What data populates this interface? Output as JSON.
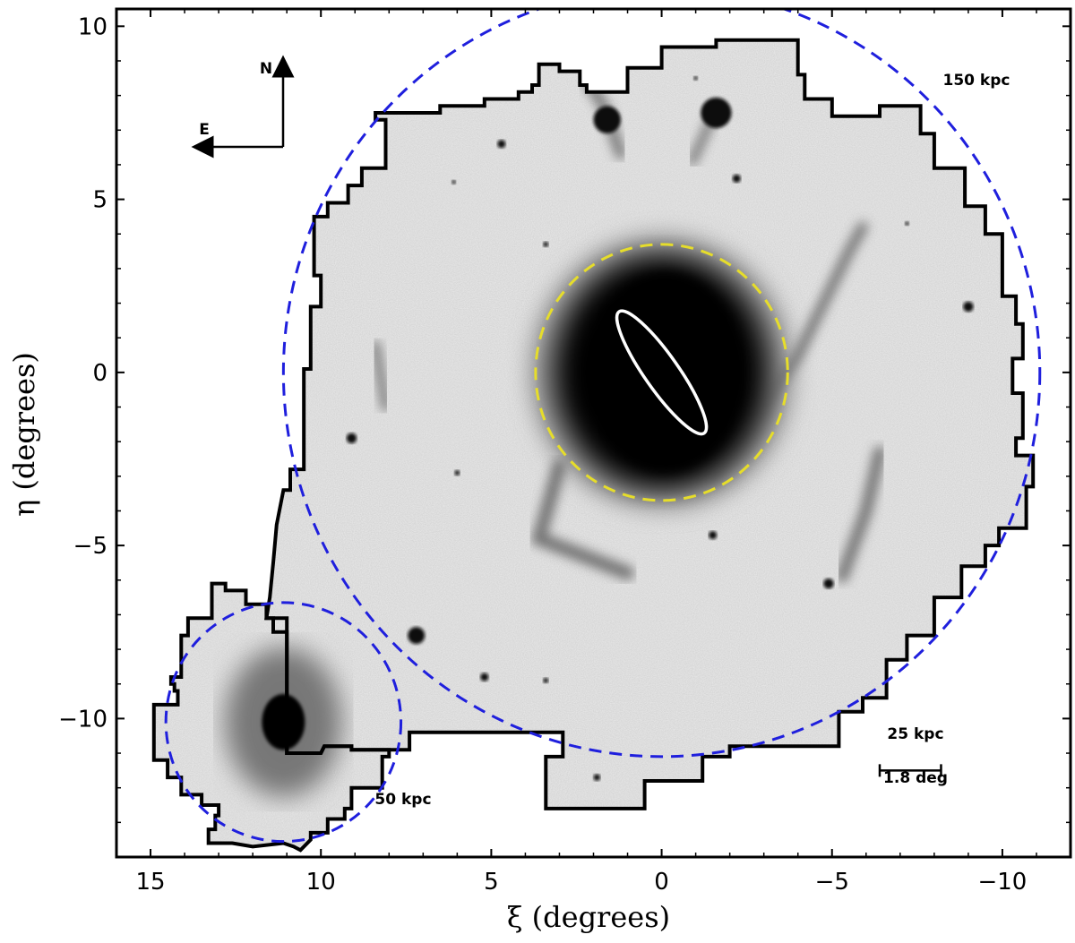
{
  "chart_data": {
    "type": "image-map",
    "xlabel": "ξ (degrees)",
    "ylabel": "η (degrees)",
    "xlim": [
      16,
      -12
    ],
    "ylim": [
      -14,
      10.5
    ],
    "x_ticks": [
      15,
      10,
      5,
      0,
      -5,
      -10
    ],
    "x_tick_labels": [
      "15",
      "10",
      "5",
      "0",
      "−5",
      "−10"
    ],
    "y_ticks": [
      10,
      5,
      0,
      -5,
      -10
    ],
    "y_tick_labels": [
      "10",
      "5",
      "0",
      "−5",
      "−10"
    ],
    "compass": {
      "north": "N",
      "east": "E"
    },
    "circles": [
      {
        "label": "150 kpc",
        "center": [
          0,
          0
        ],
        "radius_deg": 11.1,
        "color": "#1f1fdd",
        "style": "dashed"
      },
      {
        "label": "50 kpc",
        "center": [
          11.1,
          -10.1
        ],
        "radius_deg": 3.45,
        "color": "#1f1fdd",
        "style": "dashed"
      },
      {
        "label": "",
        "center": [
          0,
          0
        ],
        "radius_deg": 3.7,
        "color": "#e6dd2a",
        "style": "dashed"
      }
    ],
    "disk_ellipse": {
      "center": [
        0,
        0
      ],
      "semi_major_deg": 2.1,
      "semi_minor_deg": 0.5,
      "color": "#ffffff"
    },
    "scale_bar": {
      "physical": "25 kpc",
      "angular": "1.8 deg",
      "length_deg": 1.8,
      "x_start": -6.4,
      "y": -11.5
    },
    "survey_footprint_color": "#000000",
    "sources": [
      {
        "x": 0,
        "y": 0,
        "r": 3.6,
        "kind": "main-halo"
      },
      {
        "x": 11.1,
        "y": -10.1,
        "r": 0.9,
        "kind": "satellite-core"
      },
      {
        "x": 1.6,
        "y": 7.3,
        "r": 0.4,
        "kind": "blob"
      },
      {
        "x": -1.6,
        "y": 7.5,
        "r": 0.45,
        "kind": "blob"
      },
      {
        "x": 7.2,
        "y": -7.6,
        "r": 0.25,
        "kind": "blob"
      },
      {
        "x": 9.1,
        "y": -1.9,
        "r": 0.15,
        "kind": "blob"
      },
      {
        "x": -9.0,
        "y": 1.9,
        "r": 0.15,
        "kind": "blob"
      },
      {
        "x": -4.9,
        "y": -6.1,
        "r": 0.15,
        "kind": "blob"
      },
      {
        "x": -1.5,
        "y": -4.7,
        "r": 0.12,
        "kind": "blob"
      },
      {
        "x": 4.7,
        "y": 6.6,
        "r": 0.12,
        "kind": "blob"
      },
      {
        "x": -2.2,
        "y": 5.6,
        "r": 0.12,
        "kind": "blob"
      },
      {
        "x": 5.2,
        "y": -8.8,
        "r": 0.12,
        "kind": "blob"
      },
      {
        "x": 1.9,
        "y": -11.7,
        "r": 0.1,
        "kind": "blob"
      },
      {
        "x": 3.4,
        "y": 3.7,
        "r": 0.08,
        "kind": "blob"
      },
      {
        "x": 6.1,
        "y": 5.5,
        "r": 0.06,
        "kind": "blob"
      },
      {
        "x": 6.0,
        "y": -2.9,
        "r": 0.08,
        "kind": "blob"
      },
      {
        "x": 3.4,
        "y": -8.9,
        "r": 0.08,
        "kind": "blob"
      },
      {
        "x": -7.2,
        "y": 4.3,
        "r": 0.06,
        "kind": "blob"
      },
      {
        "x": -1.0,
        "y": 8.5,
        "r": 0.06,
        "kind": "blob"
      }
    ],
    "streams": [
      {
        "points": [
          [
            -1.5,
            -3.0
          ],
          [
            -4.0,
            0.5
          ],
          [
            -5.5,
            3.5
          ],
          [
            -5.9,
            4.2
          ]
        ],
        "width": 0.3
      },
      {
        "points": [
          [
            -5.3,
            -5.9
          ],
          [
            -6.0,
            -4.0
          ],
          [
            -6.4,
            -2.3
          ]
        ],
        "width": 0.35
      },
      {
        "points": [
          [
            8.4,
            0.8
          ],
          [
            8.1,
            -1.0
          ]
        ],
        "width": 0.25
      },
      {
        "points": [
          [
            1.2,
            6.3
          ],
          [
            1.7,
            7.7
          ],
          [
            2.3,
            8.6
          ]
        ],
        "width": 0.3
      },
      {
        "points": [
          [
            -0.9,
            6.1
          ],
          [
            -1.6,
            7.6
          ]
        ],
        "width": 0.25
      },
      {
        "points": [
          [
            3.0,
            -2.7
          ],
          [
            3.6,
            -4.8
          ],
          [
            1.0,
            -5.8
          ]
        ],
        "width": 0.4
      }
    ],
    "footprint_main": [
      [
        11.0,
        -11.0
      ],
      [
        10.0,
        -11.0
      ],
      [
        9.9,
        -10.8
      ],
      [
        9.1,
        -10.8
      ],
      [
        9.1,
        -10.9
      ],
      [
        7.4,
        -10.9
      ],
      [
        7.4,
        -10.4
      ],
      [
        2.9,
        -10.4
      ],
      [
        2.9,
        -11.1
      ],
      [
        3.4,
        -11.1
      ],
      [
        3.4,
        -12.6
      ],
      [
        0.5,
        -12.6
      ],
      [
        0.5,
        -11.8
      ],
      [
        -1.2,
        -11.8
      ],
      [
        -1.2,
        -11.1
      ],
      [
        -2.0,
        -11.1
      ],
      [
        -2.0,
        -10.8
      ],
      [
        -5.2,
        -10.8
      ],
      [
        -5.2,
        -9.8
      ],
      [
        -5.9,
        -9.8
      ],
      [
        -5.9,
        -9.4
      ],
      [
        -6.6,
        -9.4
      ],
      [
        -6.6,
        -8.3
      ],
      [
        -7.2,
        -8.3
      ],
      [
        -7.2,
        -7.6
      ],
      [
        -8.0,
        -7.6
      ],
      [
        -8.0,
        -6.5
      ],
      [
        -8.8,
        -6.5
      ],
      [
        -8.8,
        -5.6
      ],
      [
        -9.5,
        -5.6
      ],
      [
        -9.5,
        -5.0
      ],
      [
        -9.9,
        -5.0
      ],
      [
        -9.9,
        -4.5
      ],
      [
        -10.7,
        -4.5
      ],
      [
        -10.7,
        -3.3
      ],
      [
        -10.9,
        -3.3
      ],
      [
        -10.9,
        -2.4
      ],
      [
        -10.4,
        -2.4
      ],
      [
        -10.4,
        -1.9
      ],
      [
        -10.6,
        -1.9
      ],
      [
        -10.6,
        -0.6
      ],
      [
        -10.3,
        -0.6
      ],
      [
        -10.3,
        0.4
      ],
      [
        -10.6,
        0.4
      ],
      [
        -10.6,
        1.4
      ],
      [
        -10.4,
        1.4
      ],
      [
        -10.4,
        2.2
      ],
      [
        -10.0,
        2.2
      ],
      [
        -10.0,
        4.0
      ],
      [
        -9.5,
        4.0
      ],
      [
        -9.5,
        4.8
      ],
      [
        -8.9,
        4.8
      ],
      [
        -8.9,
        5.9
      ],
      [
        -8.0,
        5.9
      ],
      [
        -8.0,
        6.9
      ],
      [
        -7.6,
        6.9
      ],
      [
        -7.6,
        7.7
      ],
      [
        -6.4,
        7.7
      ],
      [
        -6.4,
        7.4
      ],
      [
        -5.0,
        7.4
      ],
      [
        -5.0,
        7.9
      ],
      [
        -4.2,
        7.9
      ],
      [
        -4.2,
        8.6
      ],
      [
        -4.0,
        8.6
      ],
      [
        -4.0,
        9.6
      ],
      [
        -1.6,
        9.6
      ],
      [
        -1.6,
        9.4
      ],
      [
        0.0,
        9.4
      ],
      [
        0.0,
        8.8
      ],
      [
        1.0,
        8.8
      ],
      [
        1.0,
        8.1
      ],
      [
        2.2,
        8.1
      ],
      [
        2.2,
        8.3
      ],
      [
        2.4,
        8.3
      ],
      [
        2.4,
        8.7
      ],
      [
        3.0,
        8.7
      ],
      [
        3.0,
        8.9
      ],
      [
        3.6,
        8.9
      ],
      [
        3.6,
        8.3
      ],
      [
        3.8,
        8.3
      ],
      [
        3.8,
        8.1
      ],
      [
        4.2,
        8.1
      ],
      [
        4.2,
        7.9
      ],
      [
        5.2,
        7.9
      ],
      [
        5.2,
        7.7
      ],
      [
        6.5,
        7.7
      ],
      [
        6.5,
        7.5
      ],
      [
        8.4,
        7.5
      ],
      [
        8.4,
        7.3
      ],
      [
        8.1,
        7.3
      ],
      [
        8.1,
        5.9
      ],
      [
        8.8,
        5.9
      ],
      [
        8.8,
        5.4
      ],
      [
        9.2,
        5.4
      ],
      [
        9.2,
        4.9
      ],
      [
        9.8,
        4.9
      ],
      [
        9.8,
        4.5
      ],
      [
        10.2,
        4.5
      ],
      [
        10.2,
        2.8
      ],
      [
        10.0,
        2.8
      ],
      [
        10.0,
        1.9
      ],
      [
        10.3,
        1.9
      ],
      [
        10.3,
        0.1
      ],
      [
        10.5,
        0.1
      ],
      [
        10.5,
        -2.8
      ],
      [
        10.9,
        -2.8
      ],
      [
        10.9,
        -3.4
      ],
      [
        11.1,
        -3.4
      ],
      [
        11.3,
        -4.4
      ],
      [
        11.4,
        -5.5
      ],
      [
        11.5,
        -6.5
      ],
      [
        11.6,
        -7.1
      ],
      [
        11.4,
        -7.1
      ],
      [
        11.4,
        -7.5
      ],
      [
        11.0,
        -7.5
      ],
      [
        11.0,
        -11.0
      ]
    ],
    "footprint_sat": [
      [
        11.0,
        -7.1
      ],
      [
        11.6,
        -7.1
      ],
      [
        11.6,
        -6.7
      ],
      [
        12.2,
        -6.7
      ],
      [
        12.2,
        -6.3
      ],
      [
        12.8,
        -6.3
      ],
      [
        12.8,
        -6.1
      ],
      [
        13.2,
        -6.1
      ],
      [
        13.2,
        -7.1
      ],
      [
        13.9,
        -7.1
      ],
      [
        13.9,
        -7.6
      ],
      [
        14.1,
        -7.6
      ],
      [
        14.1,
        -8.8
      ],
      [
        14.4,
        -8.8
      ],
      [
        14.4,
        -9.0
      ],
      [
        14.3,
        -9.0
      ],
      [
        14.3,
        -9.2
      ],
      [
        14.2,
        -9.2
      ],
      [
        14.2,
        -9.6
      ],
      [
        14.9,
        -9.6
      ],
      [
        14.9,
        -11.2
      ],
      [
        14.5,
        -11.2
      ],
      [
        14.5,
        -11.7
      ],
      [
        14.1,
        -11.7
      ],
      [
        14.1,
        -12.2
      ],
      [
        13.5,
        -12.2
      ],
      [
        13.5,
        -12.5
      ],
      [
        13.0,
        -12.5
      ],
      [
        13.0,
        -12.8
      ],
      [
        13.1,
        -12.8
      ],
      [
        13.1,
        -13.2
      ],
      [
        13.3,
        -13.2
      ],
      [
        13.3,
        -13.6
      ],
      [
        12.6,
        -13.6
      ],
      [
        12.0,
        -13.7
      ],
      [
        11.1,
        -13.6
      ],
      [
        10.8,
        -13.7
      ],
      [
        10.6,
        -13.8
      ],
      [
        10.3,
        -13.5
      ],
      [
        10.3,
        -13.3
      ],
      [
        9.8,
        -13.3
      ],
      [
        9.8,
        -12.9
      ],
      [
        9.3,
        -12.9
      ],
      [
        9.3,
        -12.6
      ],
      [
        9.1,
        -12.6
      ],
      [
        9.1,
        -12.0
      ],
      [
        8.2,
        -12.0
      ],
      [
        8.2,
        -11.1
      ],
      [
        8.0,
        -11.1
      ],
      [
        8.0,
        -10.9
      ],
      [
        9.1,
        -10.9
      ],
      [
        9.1,
        -10.8
      ],
      [
        9.9,
        -10.8
      ],
      [
        10.0,
        -11.0
      ],
      [
        11.0,
        -11.0
      ],
      [
        11.0,
        -7.1
      ]
    ]
  }
}
